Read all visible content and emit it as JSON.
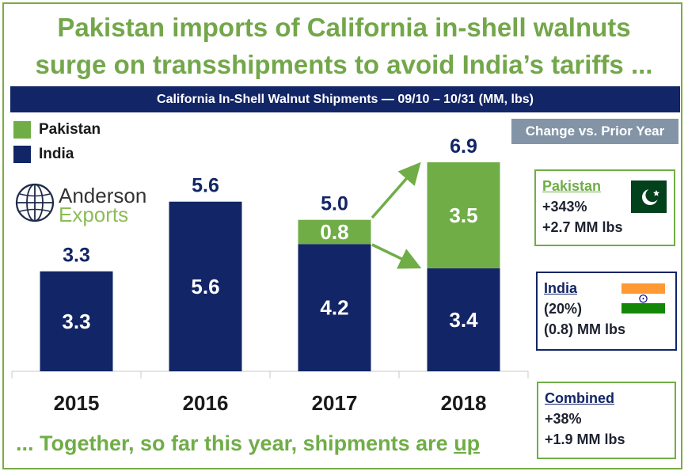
{
  "title_line1": "Pakistan imports of California in-shell walnuts",
  "title_line2": "surge on transshipments to avoid India’s tariffs ...",
  "logo": {
    "name": "Anderson",
    "sub": "Exports"
  },
  "colors": {
    "pakistan": "#70ad47",
    "india": "#122566",
    "accent_grey": "#8494a7"
  },
  "change_header": "Change vs. Prior Year",
  "boxes": {
    "pakistan": {
      "head": "Pakistan",
      "line1": "+343%",
      "line2": "+2.7 MM lbs",
      "flag_icon": "pakistan-flag"
    },
    "india": {
      "head": "India",
      "line1": "(20%)",
      "line2": "(0.8) MM lbs",
      "flag_icon": "india-flag"
    },
    "combined": {
      "head": "Combined",
      "line1": "+38%",
      "line2": "+1.9 MM lbs"
    }
  },
  "footer": {
    "text": "... Together, so far this year, shipments are ",
    "emph": "up"
  },
  "chart_data": {
    "type": "bar",
    "stacked": true,
    "title": "California In-Shell Walnut Shipments — 09/10 – 10/31 (MM, lbs)",
    "categories": [
      "2015",
      "2016",
      "2017",
      "2018"
    ],
    "series": [
      {
        "name": "India",
        "values": [
          3.3,
          5.6,
          4.2,
          3.4
        ],
        "labels": [
          "3.3",
          "5.6",
          "4.2",
          "3.4"
        ],
        "color": "#122566"
      },
      {
        "name": "Pakistan",
        "values": [
          0,
          0,
          0.8,
          3.5
        ],
        "labels": [
          "",
          "",
          "0.8",
          "3.5"
        ],
        "color": "#70ad47"
      }
    ],
    "totals": [
      3.3,
      5.6,
      5.0,
      6.9
    ],
    "total_labels": [
      "3.3",
      "5.6",
      "5.0",
      "6.9"
    ],
    "ylim": [
      0,
      6.9
    ],
    "legend": "top-left",
    "grid": false
  }
}
